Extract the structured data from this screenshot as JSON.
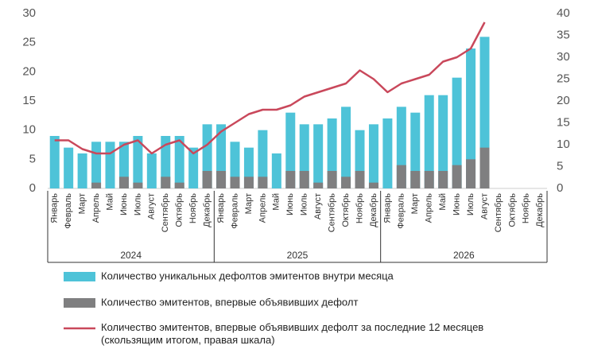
{
  "chart_data": {
    "type": "bar_line",
    "categories": [
      "Январь",
      "Февраль",
      "Март",
      "Апрель",
      "Май",
      "Июнь",
      "Июль",
      "Август",
      "Сентябрь",
      "Октябрь",
      "Ноябрь",
      "Декабрь",
      "Январь",
      "Февраль",
      "Март",
      "Апрель",
      "Май",
      "Июнь",
      "Июль",
      "Август",
      "Сентябрь",
      "Октябрь",
      "Ноябрь",
      "Декабрь",
      "Январь",
      "Февраль",
      "Март",
      "Апрель",
      "Май",
      "Июнь",
      "Июль",
      "Август",
      "Сентябрь",
      "Октябрь",
      "Ноябрь",
      "Декабрь"
    ],
    "year_groups": [
      "2024",
      "2025",
      "2026"
    ],
    "series": [
      {
        "name": "Количество уникальных дефолтов эмитентов внутри месяца",
        "color": "#4ec3d8",
        "kind": "bar",
        "values": [
          9,
          7,
          6,
          8,
          8,
          8,
          9,
          6,
          9,
          9,
          7,
          11,
          11,
          8,
          7,
          10,
          6,
          13,
          11,
          11,
          12,
          14,
          10,
          11,
          12,
          14,
          13,
          16,
          16,
          19,
          24,
          26,
          null,
          null,
          null,
          null
        ]
      },
      {
        "name": "Количество эмитентов, впервые объявивших дефолт",
        "color": "#7f7f80",
        "kind": "bar",
        "values": [
          0,
          0,
          0,
          1,
          0,
          2,
          1,
          0,
          2,
          1,
          0,
          3,
          3,
          2,
          2,
          2,
          0,
          3,
          3,
          1,
          3,
          2,
          3,
          1,
          0,
          4,
          3,
          3,
          3,
          4,
          5,
          7,
          null,
          null,
          null,
          null
        ]
      },
      {
        "name": "Количество эмитентов, впервые объявивших дефолт за последние 12 месяцев\n(скользящим итогом, правая шкала)",
        "color": "#c9485b",
        "kind": "line",
        "axis": "y2",
        "values": [
          11,
          11,
          9,
          8,
          8,
          10,
          11,
          8,
          10,
          11,
          8,
          10,
          13,
          15,
          17,
          18,
          18,
          19,
          21,
          22,
          23,
          24,
          27,
          25,
          22,
          24,
          25,
          26,
          29,
          30,
          32,
          38,
          null,
          null,
          null,
          null
        ]
      }
    ],
    "ylim": [
      0,
      30
    ],
    "yticks": [
      0,
      5,
      10,
      15,
      20,
      25,
      30
    ],
    "y2lim": [
      0,
      40
    ],
    "y2ticks": [
      0,
      5,
      10,
      15,
      20,
      25,
      30,
      35,
      40
    ],
    "grid": false
  }
}
